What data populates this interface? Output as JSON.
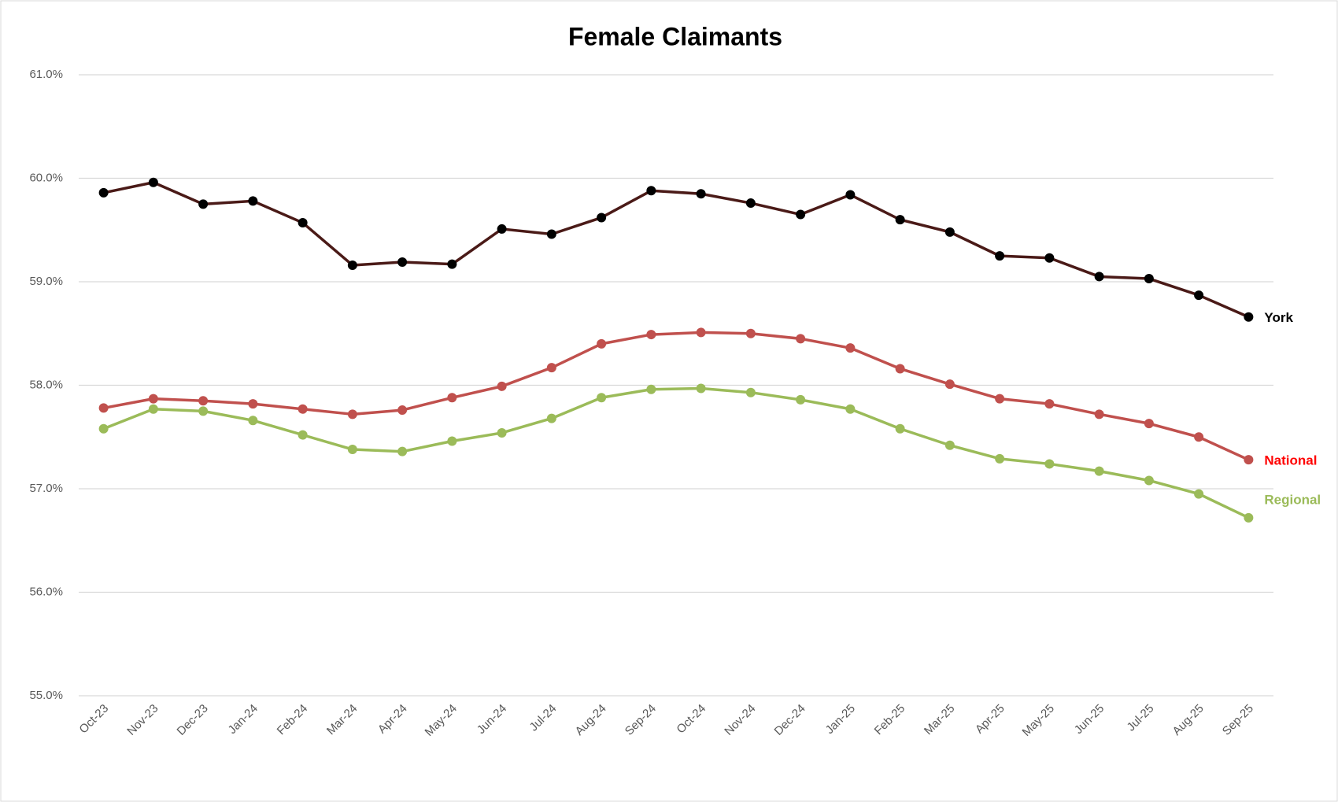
{
  "chart_data": {
    "type": "line",
    "title": "Female Claimants",
    "categories": [
      "Oct-23",
      "Nov-23",
      "Dec-23",
      "Jan-24",
      "Feb-24",
      "Mar-24",
      "Apr-24",
      "May-24",
      "Jun-24",
      "Jul-24",
      "Aug-24",
      "Sep-24",
      "Oct-24",
      "Nov-24",
      "Dec-24",
      "Jan-25",
      "Feb-25",
      "Mar-25",
      "Apr-25",
      "May-25",
      "Jun-25",
      "Jul-25",
      "Aug-25",
      "Sep-25"
    ],
    "series": [
      {
        "name": "York",
        "color": "#4a1a17",
        "marker_color": "#000000",
        "label_color": "#000000",
        "values": [
          59.86,
          59.96,
          59.75,
          59.78,
          59.57,
          59.16,
          59.19,
          59.17,
          59.51,
          59.46,
          59.62,
          59.88,
          59.85,
          59.76,
          59.65,
          59.84,
          59.6,
          59.48,
          59.25,
          59.23,
          59.05,
          59.03,
          58.87,
          58.66
        ]
      },
      {
        "name": "National",
        "color": "#c0504d",
        "marker_color": "#c0504d",
        "label_color": "#ff0000",
        "values": [
          57.78,
          57.87,
          57.85,
          57.82,
          57.77,
          57.72,
          57.76,
          57.88,
          57.99,
          58.17,
          58.4,
          58.49,
          58.51,
          58.5,
          58.45,
          58.36,
          58.16,
          58.01,
          57.87,
          57.82,
          57.72,
          57.63,
          57.5,
          57.28
        ]
      },
      {
        "name": "Regional",
        "color": "#9bbb59",
        "marker_color": "#9bbb59",
        "label_color": "#9bbb59",
        "values": [
          57.58,
          57.77,
          57.75,
          57.66,
          57.52,
          57.38,
          57.36,
          57.46,
          57.54,
          57.68,
          57.88,
          57.96,
          57.97,
          57.93,
          57.86,
          57.77,
          57.58,
          57.42,
          57.29,
          57.24,
          57.17,
          57.08,
          56.95,
          56.72
        ]
      }
    ],
    "ylim": [
      55,
      61
    ],
    "yticks": [
      {
        "value": 55,
        "label": "55.0%"
      },
      {
        "value": 56,
        "label": "56.0%"
      },
      {
        "value": 57,
        "label": "57.0%"
      },
      {
        "value": 58,
        "label": "58.0%"
      },
      {
        "value": 59,
        "label": "59.0%"
      },
      {
        "value": 60,
        "label": "60.0%"
      },
      {
        "value": 61,
        "label": "61.0%"
      }
    ],
    "grid": true
  }
}
